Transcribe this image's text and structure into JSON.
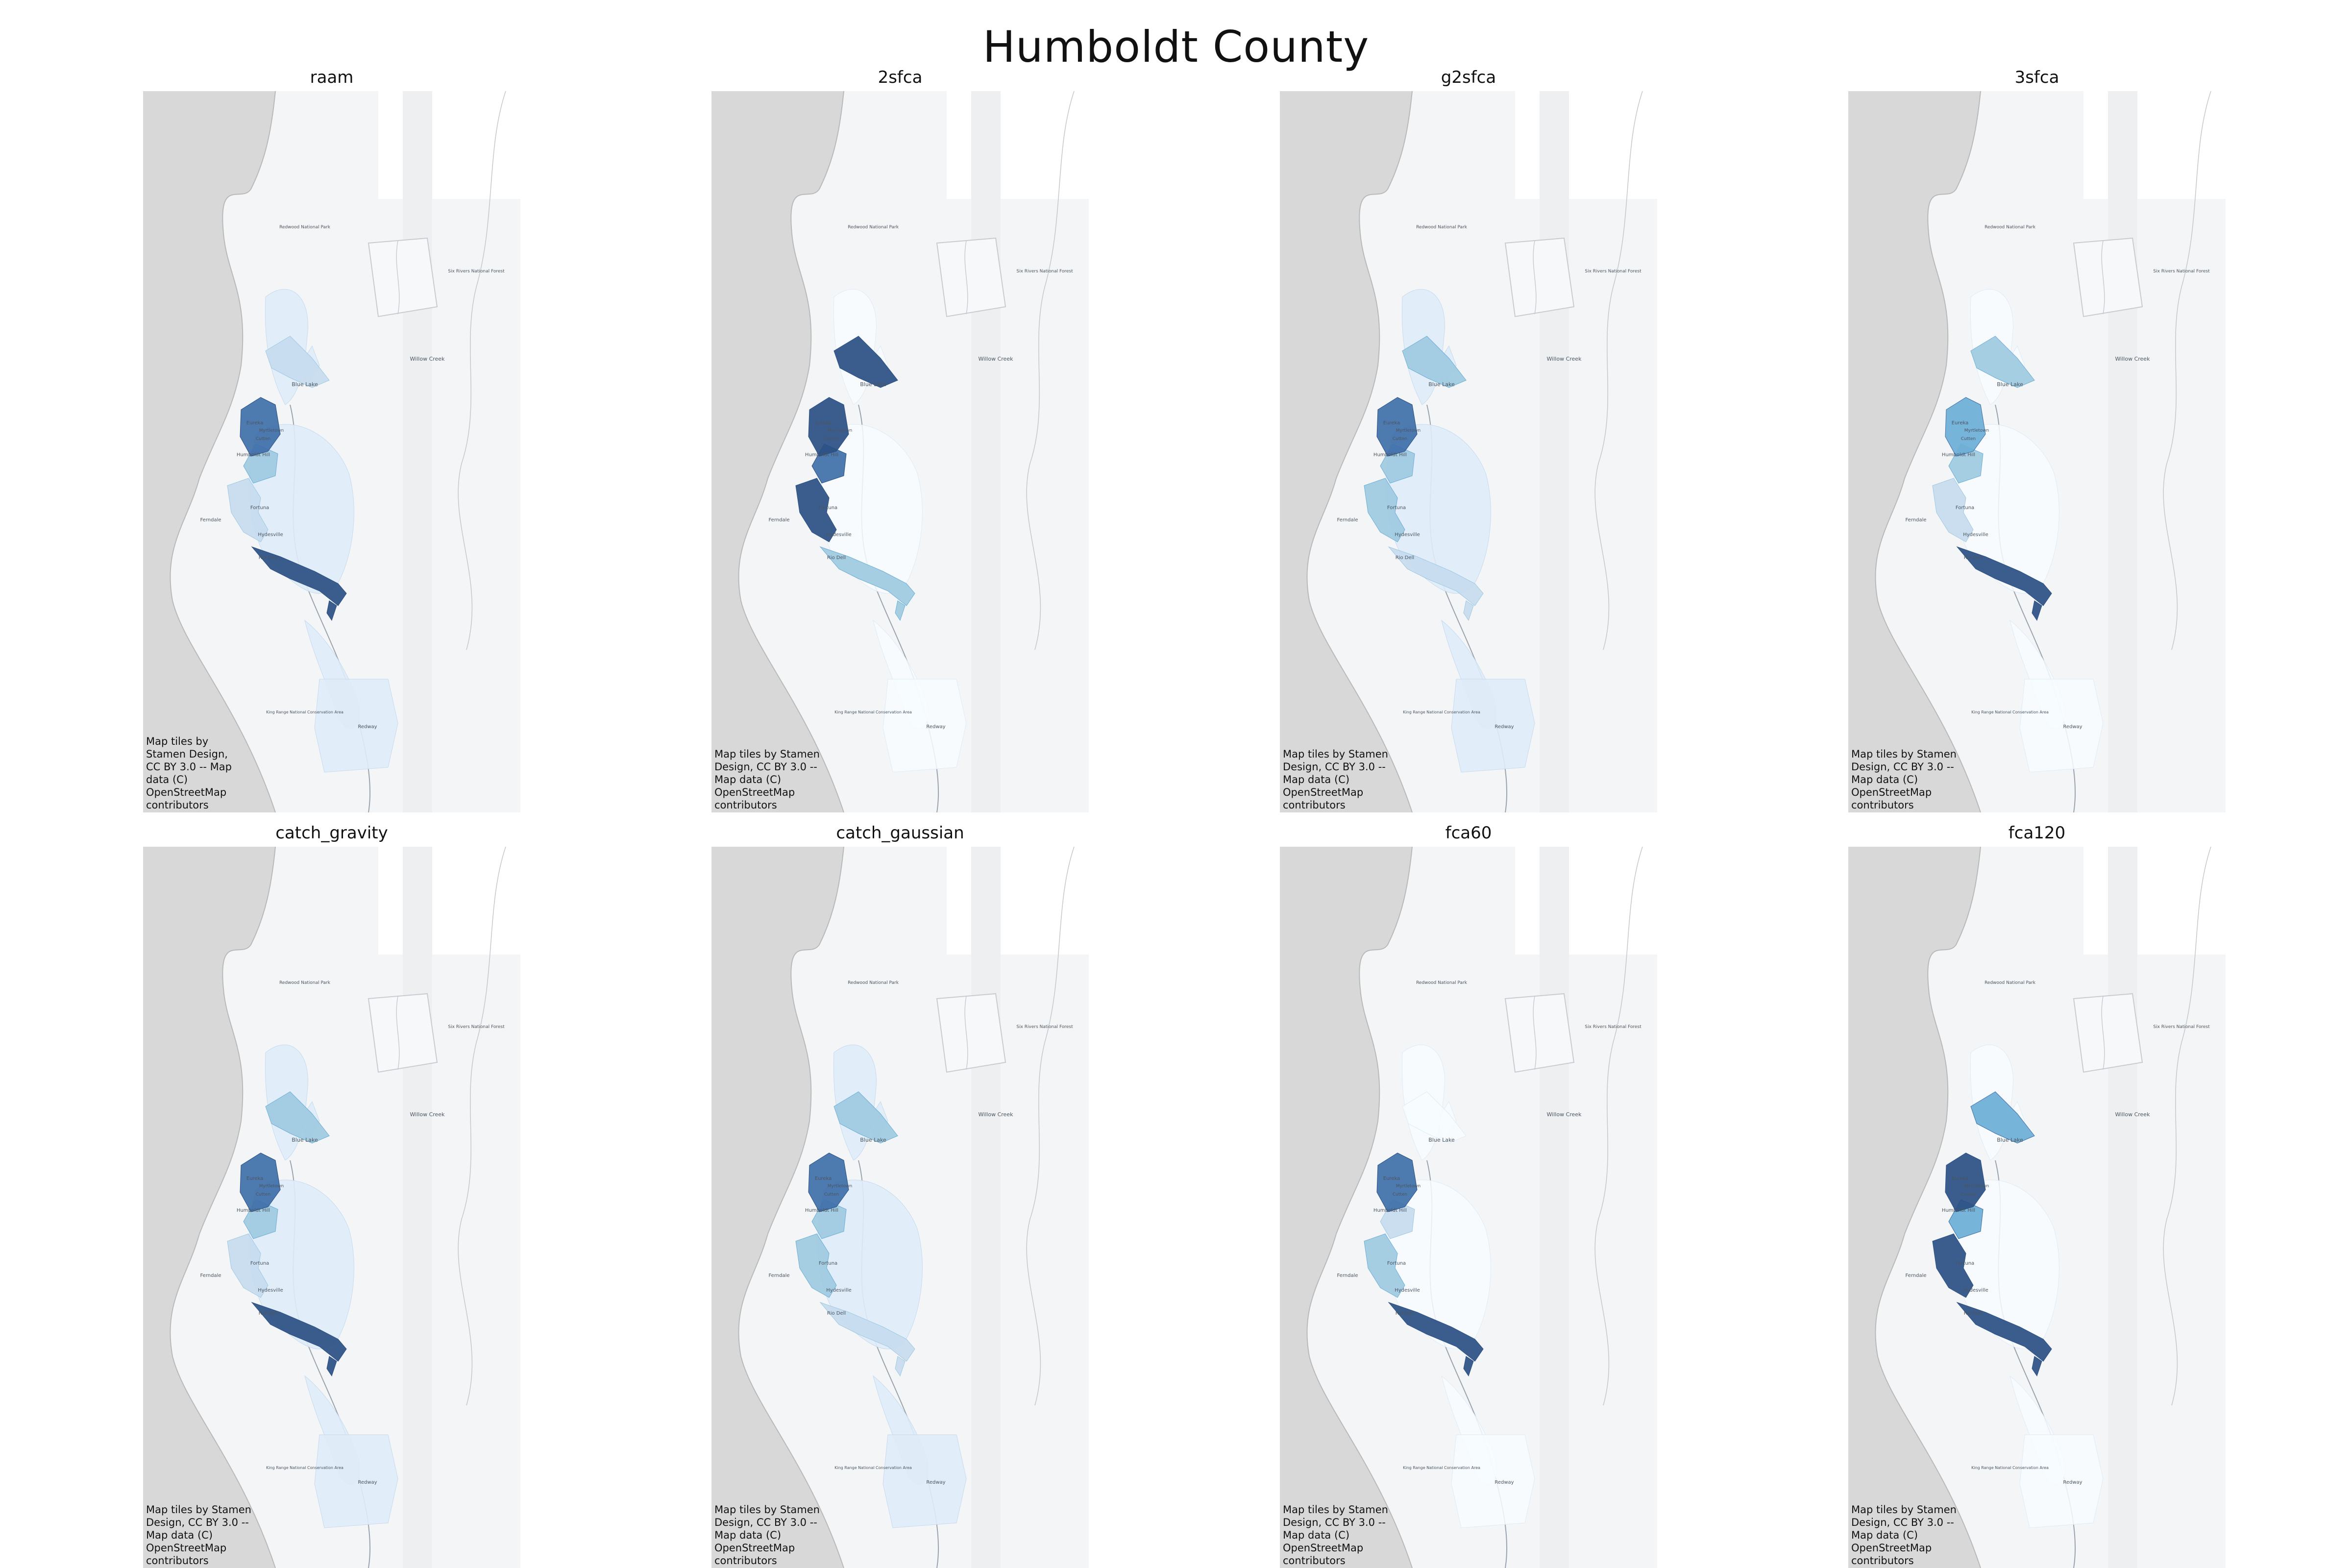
{
  "figure": {
    "title": "Humboldt County"
  },
  "attribution": {
    "short": "Map tiles by Stamen Design, CC BY 3.0 -- Map data (C) OpenStreetMap contributors",
    "narrow": "Map tiles by\nStamen Design,\nCC BY 3.0 -- Map\ndata (C)\nOpenStreetMap\ncontributors",
    "wide": "Map tiles by Stamen\nDesign, CC BY 3.0 --\nMap data (C)\nOpenStreetMap\ncontributors"
  },
  "place_labels": {
    "redwood_park": "Redwood National Park",
    "six_rivers": "Six Rivers National Forest",
    "willow_creek": "Willow Creek",
    "blue_lake": "Blue Lake",
    "eureka": "Eureka",
    "myrtletown": "Myrtletown",
    "cutten": "Cutten",
    "humboldt_hill": "Humboldt Hill",
    "fortuna": "Fortuna",
    "ferndale": "Ferndale",
    "hydesville": "Hydesville",
    "rio_dell": "Rio Dell",
    "king_range": "King Range National Conservation Area",
    "redway": "Redway"
  },
  "colors": {
    "ocean": "#d8d8d8",
    "land": "#f4f5f6",
    "ramp": [
      "#f7fbff",
      "#deebf7",
      "#c6dbef",
      "#9ecae1",
      "#6baed6",
      "#3e6fa8",
      "#2a4f83"
    ]
  },
  "panels": [
    {
      "id": "raam",
      "title": "raam",
      "attribution_style": "narrow",
      "levels": {
        "north": 1,
        "bluelake": 2,
        "eureka": 5,
        "humboldt": 3,
        "fortuna": 2,
        "central": 1,
        "riodell": 6,
        "south": 1,
        "redway": 1
      }
    },
    {
      "id": "2sfca",
      "title": "2sfca",
      "attribution_style": "wide",
      "levels": {
        "north": 0,
        "bluelake": 6,
        "eureka": 6,
        "humboldt": 5,
        "fortuna": 6,
        "central": 0,
        "riodell": 3,
        "south": 0,
        "redway": 0
      }
    },
    {
      "id": "g2sfca",
      "title": "g2sfca",
      "attribution_style": "wide",
      "levels": {
        "north": 1,
        "bluelake": 3,
        "eureka": 5,
        "humboldt": 3,
        "fortuna": 3,
        "central": 1,
        "riodell": 2,
        "south": 1,
        "redway": 1
      }
    },
    {
      "id": "3sfca",
      "title": "3sfca",
      "attribution_style": "wide",
      "levels": {
        "north": 0,
        "bluelake": 3,
        "eureka": 4,
        "humboldt": 3,
        "fortuna": 2,
        "central": 0,
        "riodell": 6,
        "south": 0,
        "redway": 0
      }
    },
    {
      "id": "catch_gravity",
      "title": "catch_gravity",
      "attribution_style": "wide",
      "levels": {
        "north": 1,
        "bluelake": 3,
        "eureka": 5,
        "humboldt": 3,
        "fortuna": 2,
        "central": 1,
        "riodell": 6,
        "south": 1,
        "redway": 1
      }
    },
    {
      "id": "catch_gaussian",
      "title": "catch_gaussian",
      "attribution_style": "wide",
      "levels": {
        "north": 1,
        "bluelake": 3,
        "eureka": 5,
        "humboldt": 3,
        "fortuna": 3,
        "central": 1,
        "riodell": 2,
        "south": 1,
        "redway": 1
      }
    },
    {
      "id": "fca60",
      "title": "fca60",
      "attribution_style": "wide",
      "levels": {
        "north": 0,
        "bluelake": 0,
        "eureka": 5,
        "humboldt": 2,
        "fortuna": 3,
        "central": 0,
        "riodell": 6,
        "south": 0,
        "redway": 0
      }
    },
    {
      "id": "fca120",
      "title": "fca120",
      "attribution_style": "wide",
      "levels": {
        "north": 0,
        "bluelake": 4,
        "eureka": 6,
        "humboldt": 4,
        "fortuna": 6,
        "central": 0,
        "riodell": 6,
        "south": 0,
        "redway": 0
      }
    }
  ]
}
